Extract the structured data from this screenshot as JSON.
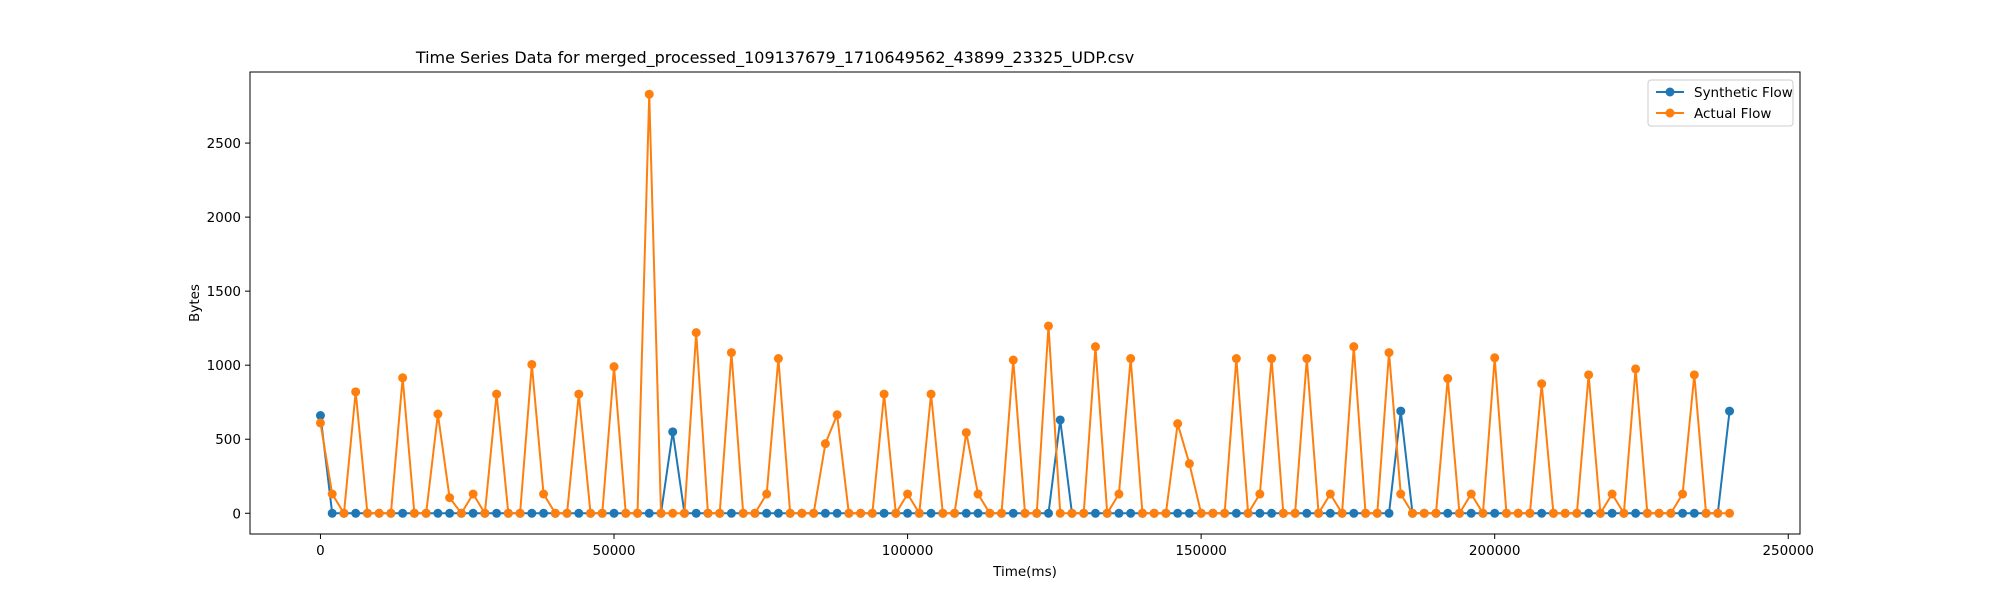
{
  "chart_data": {
    "type": "line",
    "title": "Time Series Data for merged_processed_109137679_1710649562_43899_23325_UDP.csv",
    "xlabel": "Time(ms)",
    "ylabel": "Bytes",
    "xlim": [
      -12000,
      252000
    ],
    "ylim": [
      -140,
      2980
    ],
    "xticks": [
      0,
      50000,
      100000,
      150000,
      200000,
      250000
    ],
    "xtick_labels": [
      "0",
      "50000",
      "100000",
      "150000",
      "200000",
      "250000"
    ],
    "yticks": [
      0,
      500,
      1000,
      1500,
      2000,
      2500
    ],
    "ytick_labels": [
      "0",
      "500",
      "1000",
      "1500",
      "2000",
      "2500"
    ],
    "grid": false,
    "legend_position": "top-right",
    "x": [
      0,
      2000,
      4000,
      6000,
      8000,
      10000,
      12000,
      14000,
      16000,
      18000,
      20000,
      22000,
      24000,
      26000,
      28000,
      30000,
      32000,
      34000,
      36000,
      38000,
      40000,
      42000,
      44000,
      46000,
      48000,
      50000,
      52000,
      54000,
      56000,
      58000,
      60000,
      62000,
      64000,
      66000,
      68000,
      70000,
      72000,
      74000,
      76000,
      78000,
      80000,
      82000,
      84000,
      86000,
      88000,
      90000,
      92000,
      94000,
      96000,
      98000,
      100000,
      102000,
      104000,
      106000,
      108000,
      110000,
      112000,
      114000,
      116000,
      118000,
      120000,
      122000,
      124000,
      126000,
      128000,
      130000,
      132000,
      134000,
      136000,
      138000,
      140000,
      142000,
      144000,
      146000,
      148000,
      150000,
      152000,
      154000,
      156000,
      158000,
      160000,
      162000,
      164000,
      166000,
      168000,
      170000,
      172000,
      174000,
      176000,
      178000,
      180000,
      182000,
      184000,
      186000,
      188000,
      190000,
      192000,
      194000,
      196000,
      198000,
      200000,
      202000,
      204000,
      206000,
      208000,
      210000,
      212000,
      214000,
      216000,
      218000,
      220000,
      222000,
      224000,
      226000,
      228000,
      230000,
      232000,
      234000,
      236000,
      238000,
      240000
    ],
    "series": [
      {
        "name": "Synthetic Flow",
        "color": "#1f77b4",
        "values": [
          660,
          0,
          0,
          0,
          0,
          0,
          0,
          0,
          0,
          0,
          0,
          0,
          0,
          0,
          0,
          0,
          0,
          0,
          0,
          0,
          0,
          0,
          0,
          0,
          0,
          0,
          0,
          0,
          0,
          0,
          550,
          0,
          0,
          0,
          0,
          0,
          0,
          0,
          0,
          0,
          0,
          0,
          0,
          0,
          0,
          0,
          0,
          0,
          0,
          0,
          0,
          0,
          0,
          0,
          0,
          0,
          0,
          0,
          0,
          0,
          0,
          0,
          0,
          630,
          0,
          0,
          0,
          0,
          0,
          0,
          0,
          0,
          0,
          0,
          0,
          0,
          0,
          0,
          0,
          0,
          0,
          0,
          0,
          0,
          0,
          0,
          0,
          0,
          0,
          0,
          0,
          0,
          690,
          0,
          0,
          0,
          0,
          0,
          0,
          0,
          0,
          0,
          0,
          0,
          0,
          0,
          0,
          0,
          0,
          0,
          0,
          0,
          0,
          0,
          0,
          0,
          0,
          0,
          0,
          0,
          690
        ]
      },
      {
        "name": "Actual Flow",
        "color": "#ff7f0e",
        "values": [
          610,
          130,
          0,
          820,
          0,
          0,
          0,
          915,
          0,
          0,
          670,
          105,
          0,
          130,
          0,
          805,
          0,
          0,
          1005,
          130,
          0,
          0,
          805,
          0,
          0,
          990,
          0,
          0,
          2830,
          0,
          0,
          0,
          1220,
          0,
          0,
          1085,
          0,
          0,
          130,
          1045,
          0,
          0,
          0,
          470,
          665,
          0,
          0,
          0,
          805,
          0,
          130,
          0,
          805,
          0,
          0,
          545,
          130,
          0,
          0,
          1035,
          0,
          0,
          1265,
          0,
          0,
          0,
          1125,
          0,
          130,
          1045,
          0,
          0,
          0,
          605,
          335,
          0,
          0,
          0,
          1045,
          0,
          130,
          1045,
          0,
          0,
          1045,
          0,
          130,
          0,
          1125,
          0,
          0,
          1085,
          130,
          0,
          0,
          0,
          910,
          0,
          130,
          0,
          1050,
          0,
          0,
          0,
          875,
          0,
          0,
          0,
          935,
          0,
          130,
          0,
          975,
          0,
          0,
          0,
          130,
          935,
          0,
          0,
          0
        ]
      }
    ]
  }
}
